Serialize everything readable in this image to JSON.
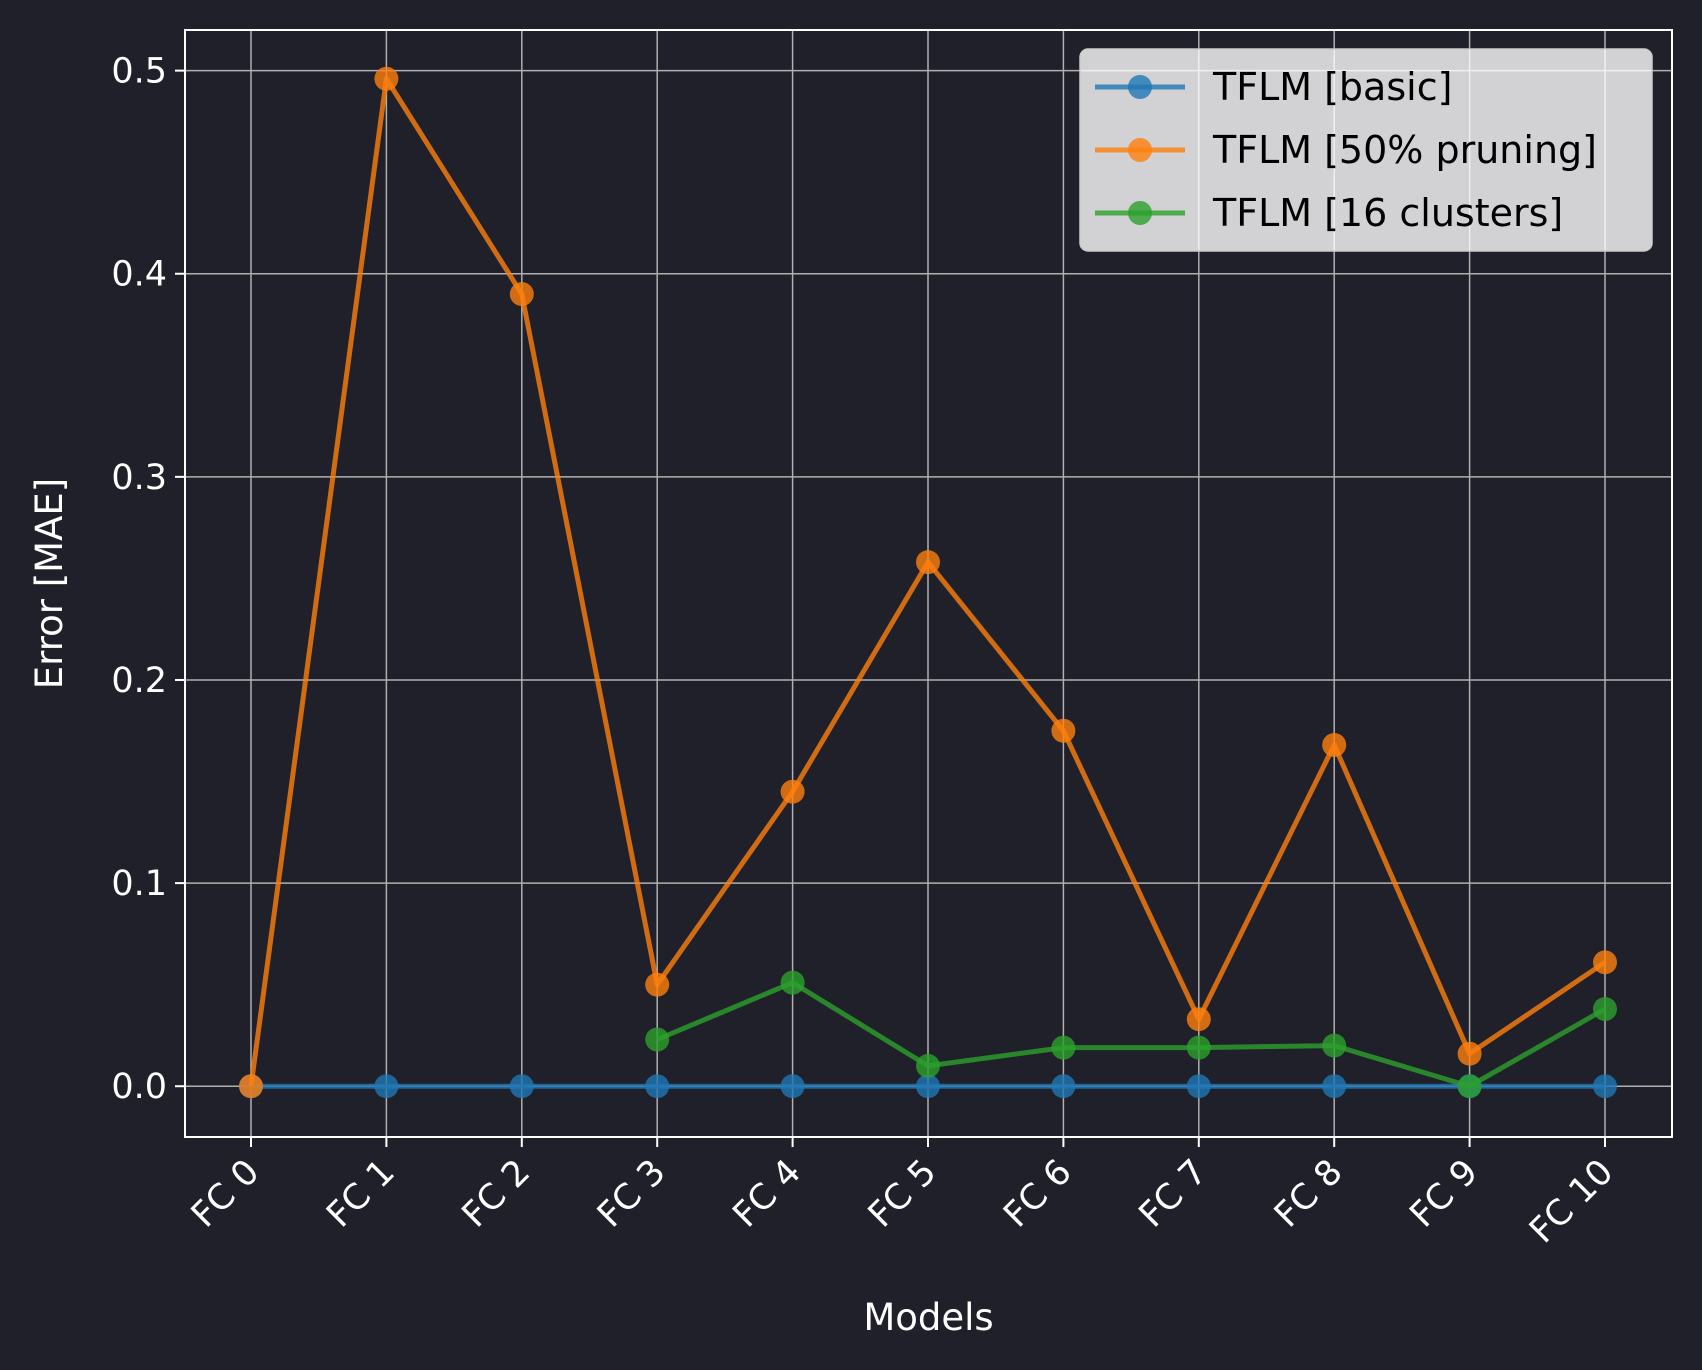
{
  "chart_data": {
    "type": "line",
    "title": "",
    "xlabel": "Models",
    "ylabel": "Error [MAE]",
    "categories": [
      "FC 0",
      "FC 1",
      "FC 2",
      "FC 3",
      "FC 4",
      "FC 5",
      "FC 6",
      "FC 7",
      "FC 8",
      "FC 9",
      "FC 10"
    ],
    "ylim": [
      -0.025,
      0.52
    ],
    "yticks": [
      "0.0",
      "0.1",
      "0.2",
      "0.3",
      "0.4",
      "0.5"
    ],
    "grid": true,
    "legend_position": "top-right",
    "series": [
      {
        "name": "TFLM [basic]",
        "color": "#1f77b4",
        "values": [
          0,
          0,
          0,
          0,
          0,
          0,
          0,
          0,
          0,
          0,
          0
        ]
      },
      {
        "name": "TFLM [50% pruning]",
        "color": "#ff7f0e",
        "values": [
          0,
          0.496,
          0.39,
          0.05,
          0.145,
          0.258,
          0.175,
          0.033,
          0.168,
          0.016,
          0.061
        ]
      },
      {
        "name": "TFLM [16 clusters]",
        "color": "#2ca02c",
        "values": [
          null,
          null,
          null,
          0.023,
          0.051,
          0.01,
          0.019,
          0.019,
          0.02,
          0.0,
          0.038
        ]
      }
    ]
  }
}
